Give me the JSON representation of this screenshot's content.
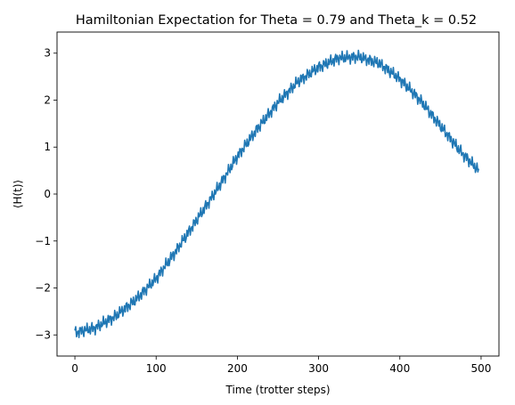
{
  "chart_data": {
    "type": "line",
    "title": "Hamiltonian Expectation for Theta = 0.79 and Theta_k = 0.52",
    "xlabel": "Time (trotter steps)",
    "ylabel": "⟨H(t)⟩",
    "xlim": [
      -22,
      522
    ],
    "ylim": [
      -3.45,
      3.45
    ],
    "xticks": [
      0,
      100,
      200,
      300,
      400,
      500
    ],
    "yticks": [
      -3,
      -2,
      -1,
      0,
      1,
      2,
      3
    ],
    "ytick_labels": [
      "−3",
      "−2",
      "−1",
      "0",
      "1",
      "2",
      "3"
    ],
    "grid": false,
    "series": [
      {
        "color": "#1f77b4",
        "trend": {
          "x": [
            0,
            25,
            50,
            75,
            100,
            125,
            150,
            175,
            200,
            225,
            250,
            275,
            300,
            325,
            350,
            375,
            400,
            425,
            450,
            475,
            497
          ],
          "y": [
            -2.95,
            -2.85,
            -2.6,
            -2.25,
            -1.8,
            -1.2,
            -0.55,
            0.1,
            0.8,
            1.4,
            1.95,
            2.4,
            2.7,
            2.9,
            2.92,
            2.78,
            2.45,
            2.0,
            1.45,
            0.9,
            0.5
          ]
        },
        "oscillation_amplitude": 0.15,
        "n_points": 498
      }
    ]
  }
}
